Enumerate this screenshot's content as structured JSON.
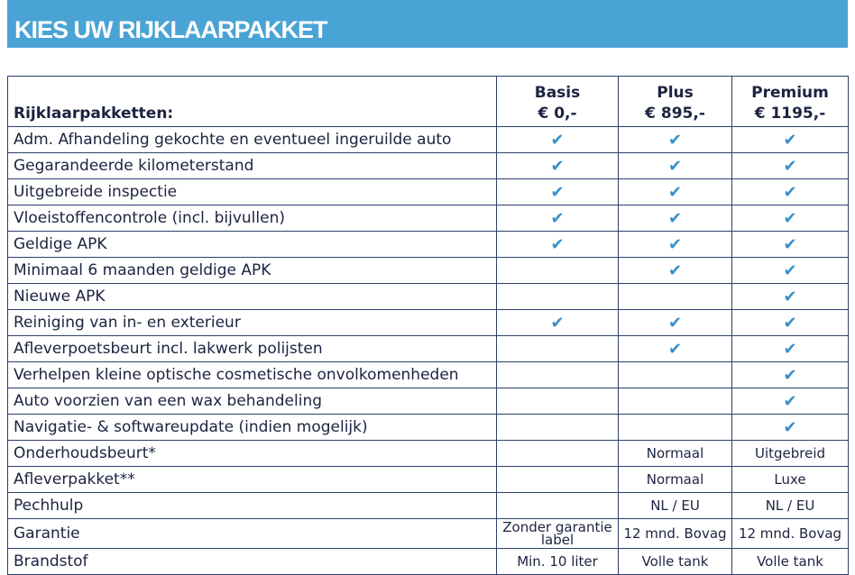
{
  "title": "KIES UW RIJKLAARPAKKET",
  "table": {
    "header_label": "Rijklaarpakketten:",
    "packages": [
      {
        "name": "Basis",
        "price": "€ 0,-"
      },
      {
        "name": "Plus",
        "price": "€ 895,-"
      },
      {
        "name": "Premium",
        "price": "€ 1195,-"
      }
    ],
    "check_icon": "checkmark-icon",
    "check_color": "#3a8fc8",
    "rows": [
      {
        "label": "Adm. Afhandeling gekochte en eventueel ingeruilde auto",
        "values": [
          true,
          true,
          true
        ]
      },
      {
        "label": "Gegarandeerde kilometerstand",
        "values": [
          true,
          true,
          true
        ]
      },
      {
        "label": "Uitgebreide inspectie",
        "values": [
          true,
          true,
          true
        ]
      },
      {
        "label": "Vloeistoffencontrole (incl. bijvullen)",
        "values": [
          true,
          true,
          true
        ]
      },
      {
        "label": "Geldige APK",
        "values": [
          true,
          true,
          true
        ]
      },
      {
        "label": "Minimaal 6 maanden geldige APK",
        "values": [
          false,
          true,
          true
        ]
      },
      {
        "label": "Nieuwe APK",
        "values": [
          false,
          false,
          true
        ]
      },
      {
        "label": "Reiniging van in- en exterieur",
        "values": [
          true,
          true,
          true
        ]
      },
      {
        "label": "Afleverpoetsbeurt incl. lakwerk polijsten",
        "values": [
          false,
          true,
          true
        ]
      },
      {
        "label": "Verhelpen kleine optische cosmetische onvolkomenheden",
        "values": [
          false,
          false,
          true
        ]
      },
      {
        "label": "Auto voorzien van een wax behandeling",
        "values": [
          false,
          false,
          true
        ]
      },
      {
        "label": "Navigatie- & softwareupdate (indien mogelijk)",
        "values": [
          false,
          false,
          true
        ]
      },
      {
        "label": "Onderhoudsbeurt*",
        "values": [
          "",
          "Normaal",
          "Uitgebreid"
        ]
      },
      {
        "label": "Afleverpakket**",
        "values": [
          "",
          "Normaal",
          "Luxe"
        ]
      },
      {
        "label": "Pechhulp",
        "values": [
          "",
          "NL / EU",
          "NL / EU"
        ]
      },
      {
        "label": "Garantie",
        "values": [
          "Zonder garantie label",
          "12 mnd. Bovag",
          "12 mnd. Bovag"
        ]
      },
      {
        "label": "Brandstof",
        "values": [
          "Min. 10 liter",
          "Volle tank",
          "Volle tank"
        ]
      }
    ]
  }
}
